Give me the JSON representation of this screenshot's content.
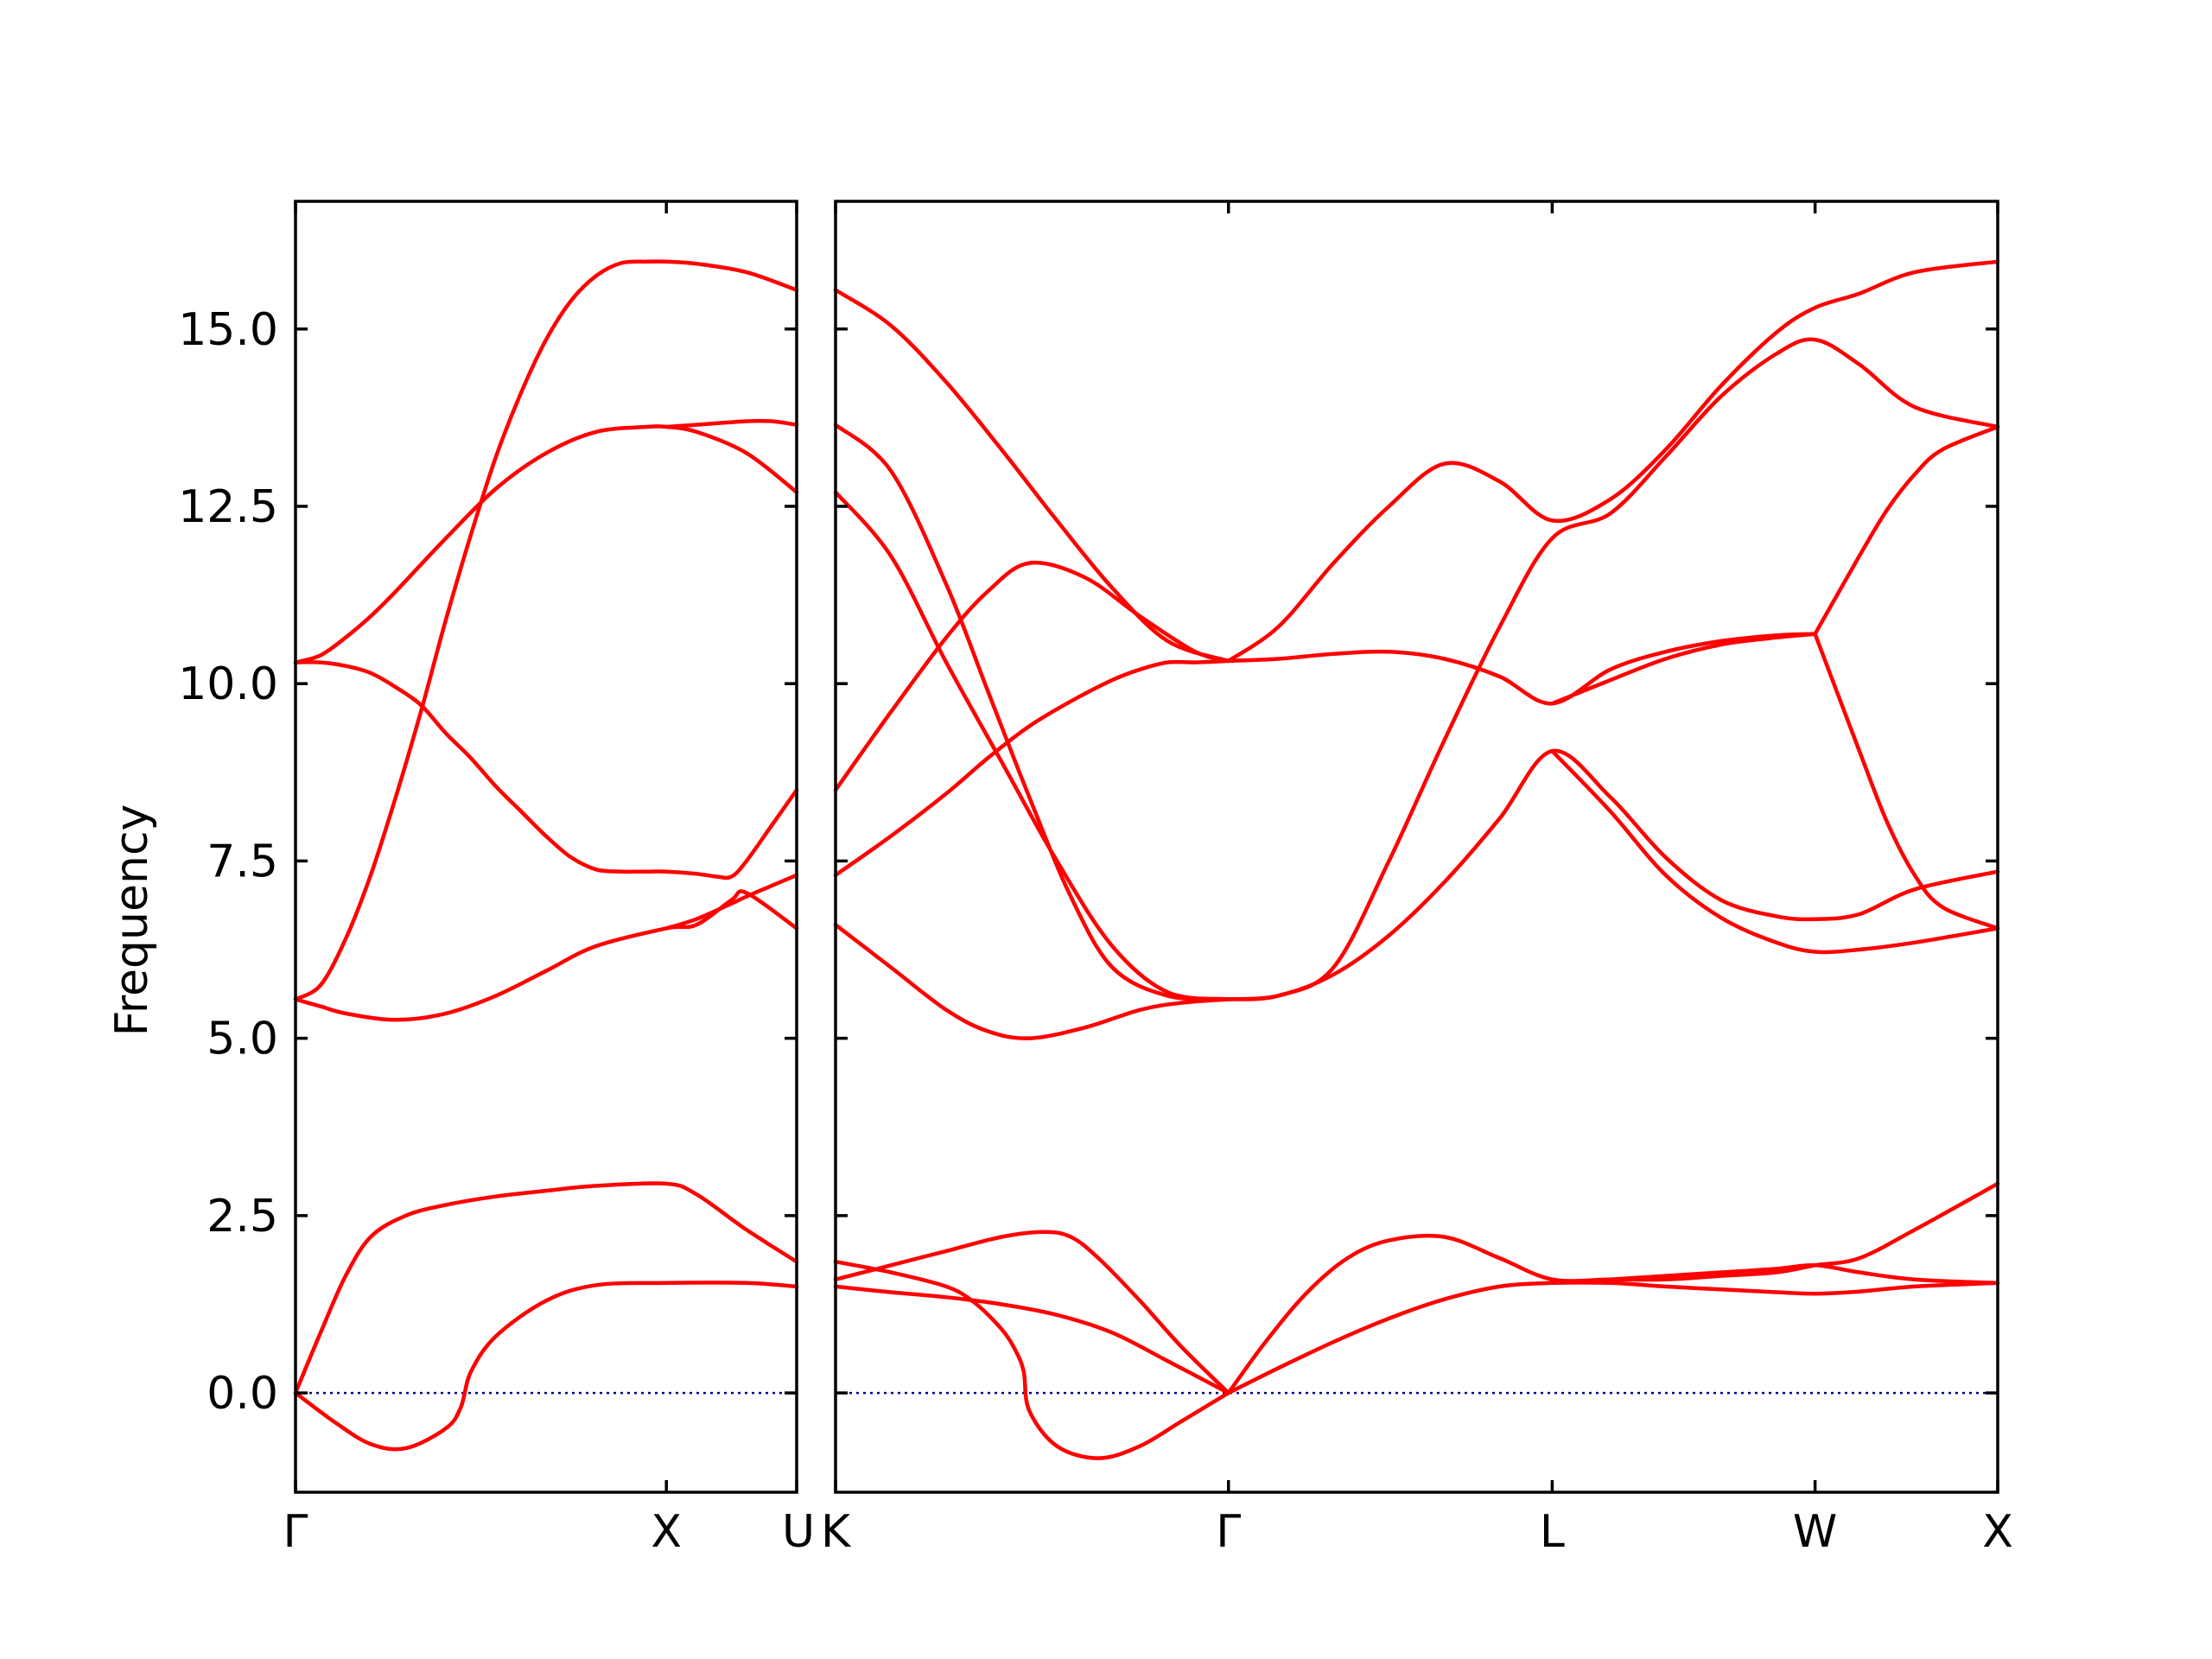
{
  "chart_data": {
    "type": "line",
    "ylabel": "Frequency",
    "ylim": [
      -1.4,
      16.8
    ],
    "yticks": [
      "0.0",
      "2.5",
      "5.0",
      "7.5",
      "10.0",
      "12.5",
      "15.0"
    ],
    "yticks_values": [
      0.0,
      2.5,
      5.0,
      7.5,
      10.0,
      12.5,
      15.0
    ],
    "line_color": "#ff0000",
    "zero_line_color": "#00008b",
    "grid": false,
    "panels": [
      {
        "xlim": [
          0,
          1.0
        ],
        "ticks": [
          {
            "x": 0.0,
            "label": "Γ"
          },
          {
            "x": 0.74,
            "label": "X"
          },
          {
            "x": 1.0,
            "label": "U"
          }
        ],
        "bands": [
          {
            "x": [
              0,
              0.08,
              0.15,
              0.22,
              0.3,
              0.33,
              0.35,
              0.4,
              0.5,
              0.6,
              0.74,
              0.9,
              1.0
            ],
            "y": [
              0,
              -0.42,
              -0.72,
              -0.78,
              -0.5,
              -0.2,
              0.3,
              0.8,
              1.3,
              1.52,
              1.55,
              1.55,
              1.5
            ]
          },
          {
            "x": [
              0,
              0.05,
              0.1,
              0.15,
              0.22,
              0.3,
              0.4,
              0.5,
              0.6,
              0.74,
              0.8,
              0.9,
              1.0
            ],
            "y": [
              0,
              0.85,
              1.65,
              2.2,
              2.5,
              2.65,
              2.77,
              2.85,
              2.92,
              2.95,
              2.8,
              2.3,
              1.85
            ]
          },
          {
            "x": [
              0,
              0.05,
              0.1,
              0.2,
              0.3,
              0.4,
              0.5,
              0.6,
              0.74,
              0.8,
              0.87,
              0.9,
              1.0
            ],
            "y": [
              5.55,
              5.45,
              5.35,
              5.26,
              5.35,
              5.6,
              5.95,
              6.3,
              6.55,
              6.6,
              6.95,
              7.05,
              6.55
            ]
          },
          {
            "x": [
              0,
              0.05,
              0.1,
              0.15,
              0.2,
              0.25,
              0.3,
              0.35,
              0.4,
              0.45,
              0.5,
              0.55,
              0.6,
              0.65,
              0.7,
              0.74,
              0.8,
              0.9,
              1.0
            ],
            "y": [
              5.55,
              5.75,
              6.4,
              7.3,
              8.4,
              9.6,
              10.9,
              12.1,
              13.2,
              14.1,
              14.85,
              15.4,
              15.75,
              15.93,
              15.95,
              15.95,
              15.92,
              15.8,
              15.55
            ]
          },
          {
            "x": [
              0,
              0.05,
              0.1,
              0.15,
              0.2,
              0.25,
              0.3,
              0.35,
              0.4,
              0.45,
              0.5,
              0.55,
              0.6,
              0.65,
              0.7,
              0.74,
              0.8,
              0.84,
              0.87,
              0.9,
              0.95,
              1.0
            ],
            "y": [
              10.3,
              10.3,
              10.25,
              10.15,
              9.95,
              9.7,
              9.3,
              8.95,
              8.55,
              8.2,
              7.85,
              7.55,
              7.38,
              7.35,
              7.35,
              7.35,
              7.32,
              7.28,
              7.28,
              7.5,
              8.0,
              8.5
            ]
          },
          {
            "x": [
              0,
              0.05,
              0.1,
              0.15,
              0.2,
              0.3,
              0.4,
              0.5,
              0.6,
              0.7,
              0.74,
              0.8,
              0.9,
              1.0
            ],
            "y": [
              10.3,
              10.4,
              10.65,
              10.95,
              11.3,
              12.05,
              12.75,
              13.25,
              13.55,
              13.62,
              13.62,
              13.55,
              13.25,
              12.7
            ]
          },
          {
            "x": [
              0.74,
              0.8,
              0.87,
              0.9,
              0.95,
              1.0
            ],
            "y": [
              6.55,
              6.68,
              6.9,
              7.0,
              7.15,
              7.3
            ]
          },
          {
            "x": [
              0.74,
              0.8,
              0.9,
              0.95,
              1.0
            ],
            "y": [
              13.62,
              13.65,
              13.7,
              13.7,
              13.65
            ]
          }
        ]
      },
      {
        "xlim": [
          0,
          4.2
        ],
        "ticks": [
          {
            "x": 0.0,
            "label": "K"
          },
          {
            "x": 1.42,
            "label": "Γ"
          },
          {
            "x": 2.59,
            "label": "L"
          },
          {
            "x": 3.54,
            "label": "W"
          },
          {
            "x": 4.2,
            "label": "X"
          }
        ],
        "bands": [
          {
            "x": [
              0,
              0.2,
              0.4,
              0.5,
              0.6,
              0.65,
              0.68,
              0.7,
              0.8,
              0.95,
              1.1,
              1.25,
              1.42
            ],
            "y": [
              1.85,
              1.7,
              1.5,
              1.28,
              0.9,
              0.6,
              0.3,
              -0.25,
              -0.75,
              -0.92,
              -0.75,
              -0.4,
              0
            ]
          },
          {
            "x": [
              0,
              0.2,
              0.4,
              0.6,
              0.8,
              1.0,
              1.2,
              1.42
            ],
            "y": [
              1.5,
              1.42,
              1.35,
              1.25,
              1.1,
              0.85,
              0.45,
              0
            ]
          },
          {
            "x": [
              0,
              0.2,
              0.4,
              0.6,
              0.75,
              0.85,
              0.95,
              1.1,
              1.25,
              1.42
            ],
            "y": [
              1.6,
              1.8,
              2.0,
              2.2,
              2.27,
              2.2,
              1.9,
              1.3,
              0.65,
              0
            ]
          },
          {
            "x": [
              1.42,
              1.6,
              1.8,
              2.0,
              2.2,
              2.4,
              2.59,
              2.8,
              3.0,
              3.2,
              3.4,
              3.54,
              3.7,
              3.9,
              4.2
            ],
            "y": [
              0,
              0.35,
              0.72,
              1.05,
              1.32,
              1.5,
              1.55,
              1.55,
              1.5,
              1.46,
              1.42,
              1.4,
              1.43,
              1.5,
              1.55
            ]
          },
          {
            "x": [
              1.42,
              1.55,
              1.7,
              1.85,
              2.0,
              2.2,
              2.4,
              2.59,
              2.8,
              3.0,
              3.2,
              3.4,
              3.54,
              3.7,
              3.9,
              4.2
            ],
            "y": [
              0,
              0.7,
              1.4,
              1.9,
              2.15,
              2.2,
              1.9,
              1.6,
              1.6,
              1.6,
              1.65,
              1.7,
              1.8,
              1.9,
              2.3,
              2.95
            ]
          },
          {
            "x": [
              2.59,
              2.8,
              3.0,
              3.2,
              3.4,
              3.54,
              3.7,
              3.9,
              4.2
            ],
            "y": [
              1.55,
              1.6,
              1.65,
              1.7,
              1.75,
              1.8,
              1.7,
              1.6,
              1.55
            ]
          },
          {
            "x": [
              0,
              0.2,
              0.4,
              0.55,
              0.7,
              0.9,
              1.1,
              1.25,
              1.42
            ],
            "y": [
              6.6,
              6.0,
              5.4,
              5.1,
              5.0,
              5.15,
              5.4,
              5.5,
              5.55
            ]
          },
          {
            "x": [
              0,
              0.2,
              0.4,
              0.55,
              0.7,
              0.85,
              1.0,
              1.1,
              1.2,
              1.3,
              1.42
            ],
            "y": [
              7.3,
              7.85,
              8.45,
              8.95,
              9.4,
              9.75,
              10.05,
              10.2,
              10.3,
              10.3,
              10.32
            ]
          },
          {
            "x": [
              1.42,
              1.6,
              1.8,
              2.0,
              2.2,
              2.4,
              2.59,
              2.8,
              3.0,
              3.2,
              3.4,
              3.54
            ],
            "y": [
              10.32,
              10.35,
              10.42,
              10.45,
              10.35,
              10.1,
              9.72,
              10.2,
              10.45,
              10.6,
              10.68,
              10.7
            ]
          },
          {
            "x": [
              2.59,
              2.8,
              3.0,
              3.2,
              3.4,
              3.54
            ],
            "y": [
              9.72,
              10.05,
              10.35,
              10.55,
              10.65,
              10.7
            ]
          },
          {
            "x": [
              0,
              0.2,
              0.4,
              0.55,
              0.7,
              0.9,
              1.1,
              1.3,
              1.42
            ],
            "y": [
              8.5,
              9.6,
              10.65,
              11.3,
              11.7,
              11.5,
              10.95,
              10.45,
              10.32
            ]
          },
          {
            "x": [
              0,
              0.2,
              0.4,
              0.6,
              0.8,
              1.0,
              1.2,
              1.42
            ],
            "y": [
              12.7,
              11.8,
              10.3,
              8.9,
              7.5,
              6.3,
              5.65,
              5.55
            ]
          },
          {
            "x": [
              0,
              0.2,
              0.4,
              0.55,
              0.7,
              0.85,
              1.0,
              1.2,
              1.42
            ],
            "y": [
              13.65,
              13.0,
              11.4,
              9.9,
              8.4,
              7.0,
              6.0,
              5.6,
              5.55
            ]
          },
          {
            "x": [
              0,
              0.2,
              0.4,
              0.6,
              0.8,
              1.0,
              1.2,
              1.42
            ],
            "y": [
              15.55,
              15.05,
              14.25,
              13.3,
              12.3,
              11.35,
              10.6,
              10.32
            ]
          },
          {
            "x": [
              1.42,
              1.6,
              1.8,
              2.0,
              2.2,
              2.4,
              2.59,
              2.8,
              3.0,
              3.2,
              3.4,
              3.54,
              3.7,
              3.9,
              4.2
            ],
            "y": [
              10.32,
              10.8,
              11.7,
              12.5,
              13.1,
              12.85,
              12.3,
              12.6,
              13.3,
              14.2,
              14.95,
              15.3,
              15.5,
              15.8,
              15.95
            ]
          },
          {
            "x": [
              1.42,
              1.6,
              1.8,
              2.0,
              2.2,
              2.4,
              2.59,
              2.8,
              3.0,
              3.2,
              3.4,
              3.54,
              3.7,
              3.9,
              4.2
            ],
            "y": [
              5.55,
              5.6,
              6.0,
              7.5,
              9.2,
              10.8,
              12.05,
              12.4,
              13.2,
              14.05,
              14.65,
              14.85,
              14.5,
              13.9,
              13.62
            ]
          },
          {
            "x": [
              1.42,
              1.6,
              1.8,
              2.0,
              2.2,
              2.4,
              2.59,
              2.8,
              3.0,
              3.2,
              3.4,
              3.54,
              3.7,
              3.9,
              4.2
            ],
            "y": [
              5.55,
              5.6,
              5.9,
              6.45,
              7.2,
              8.1,
              9.05,
              8.4,
              7.55,
              6.95,
              6.72,
              6.68,
              6.75,
              7.1,
              7.35
            ]
          },
          {
            "x": [
              2.59,
              2.8,
              3.0,
              3.2,
              3.4,
              3.54,
              3.7,
              3.9,
              4.2
            ],
            "y": [
              9.05,
              8.2,
              7.3,
              6.7,
              6.35,
              6.22,
              6.25,
              6.35,
              6.55
            ]
          },
          {
            "x": [
              3.54,
              3.7,
              3.8,
              3.9,
              4.0,
              4.2
            ],
            "y": [
              10.7,
              11.8,
              12.45,
              12.95,
              13.3,
              13.62
            ]
          },
          {
            "x": [
              3.54,
              3.7,
              3.8,
              3.9,
              4.0,
              4.2
            ],
            "y": [
              10.7,
              9.05,
              8.05,
              7.3,
              6.85,
              6.55
            ]
          }
        ]
      }
    ]
  }
}
